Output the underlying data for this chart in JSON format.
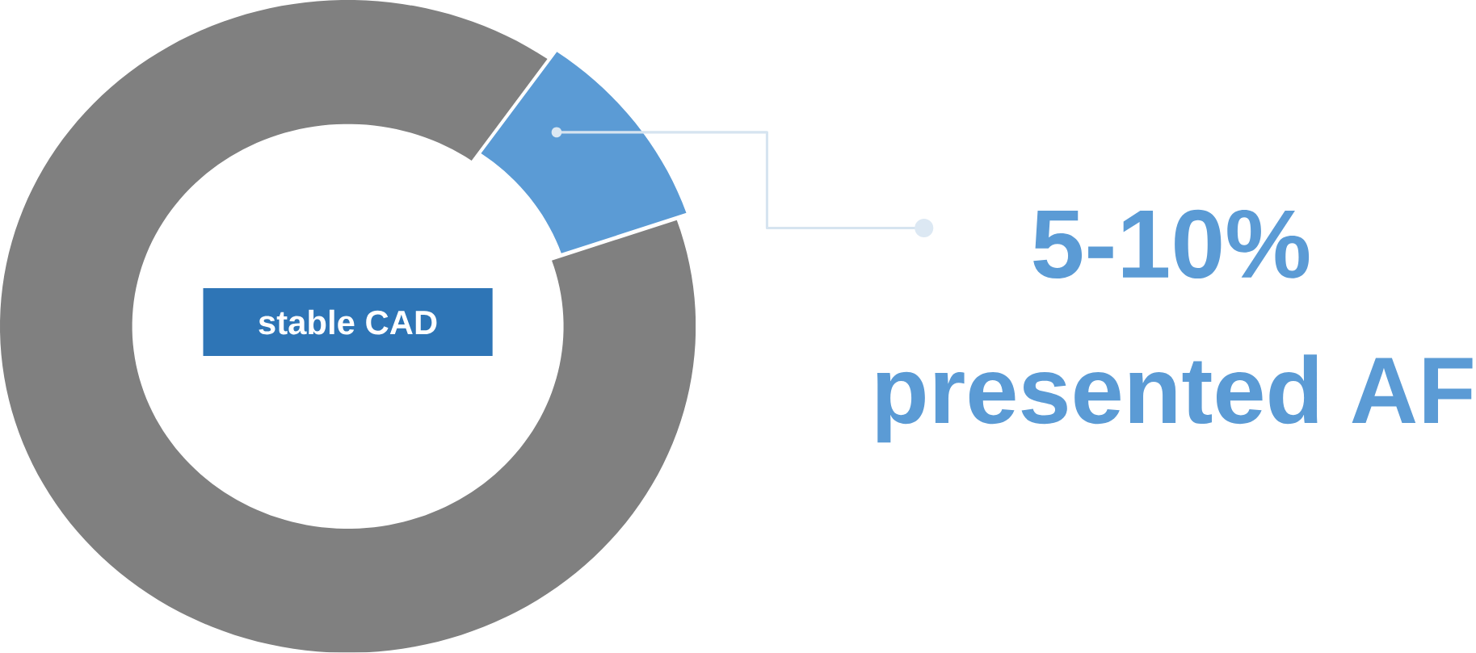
{
  "chart_data": {
    "type": "donut",
    "title": "stable CAD",
    "categories": [
      null,
      null
    ],
    "values": [
      10,
      90
    ],
    "colors": [
      "#5b9bd5",
      "#808080"
    ],
    "annotations": [
      "5-10%",
      "presented AF"
    ]
  }
}
